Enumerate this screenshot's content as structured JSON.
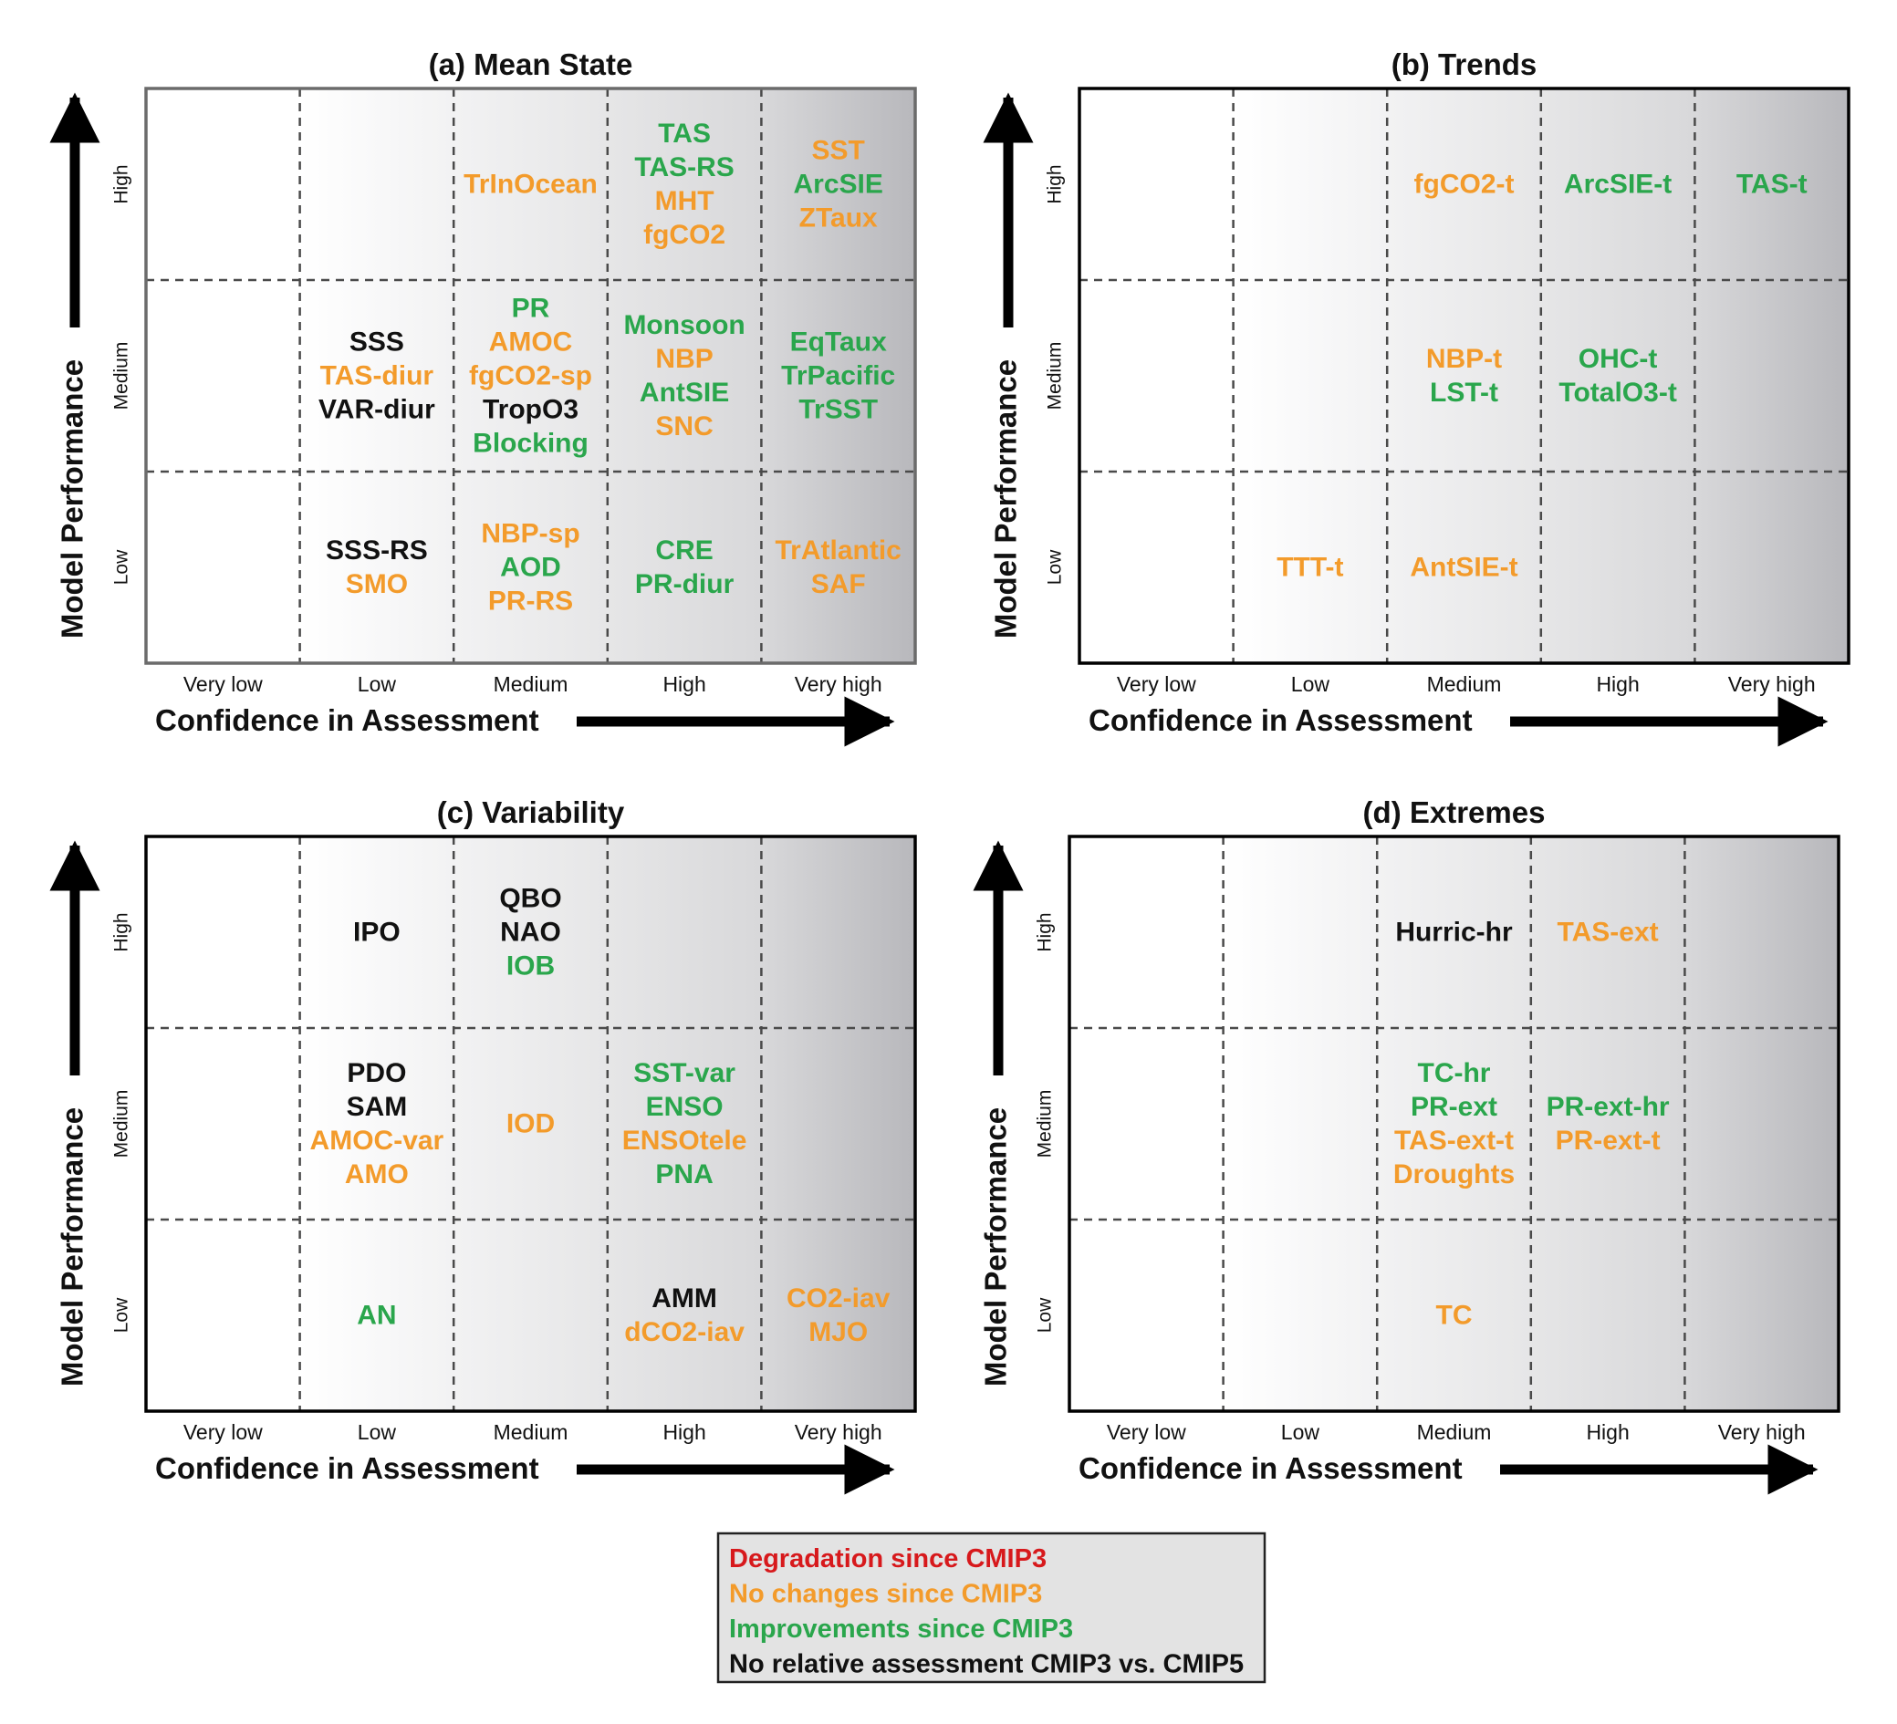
{
  "colors": {
    "degradation": "#d7191c",
    "no_change": "#f39b2b",
    "improvement": "#2aa64c",
    "no_assessment": "#111111"
  },
  "axes": {
    "x_title": "Confidence in Assessment",
    "y_title": "Model Performance",
    "x_ticks": [
      "Very low",
      "Low",
      "Medium",
      "High",
      "Very high"
    ],
    "y_ticks": [
      "Low",
      "Medium",
      "High"
    ]
  },
  "legend": [
    {
      "key": "degradation",
      "label": "Degradation since CMIP3"
    },
    {
      "key": "no_change",
      "label": "No changes since CMIP3"
    },
    {
      "key": "improvement",
      "label": "Improvements since CMIP3"
    },
    {
      "key": "no_assessment",
      "label": "No relative assessment CMIP3 vs. CMIP5"
    }
  ],
  "chart_data": [
    {
      "type": "table",
      "title": "(a) Mean State",
      "cells": [
        {
          "confidence": "Medium",
          "performance": "High",
          "items": [
            {
              "label": "TrInOcean",
              "status": "no_change"
            }
          ]
        },
        {
          "confidence": "High",
          "performance": "High",
          "items": [
            {
              "label": "TAS",
              "status": "improvement"
            },
            {
              "label": "TAS-RS",
              "status": "improvement"
            },
            {
              "label": "MHT",
              "status": "no_change"
            },
            {
              "label": "fgCO2",
              "status": "no_change"
            }
          ]
        },
        {
          "confidence": "Very high",
          "performance": "High",
          "items": [
            {
              "label": "SST",
              "status": "no_change"
            },
            {
              "label": "ArcSIE",
              "status": "improvement"
            },
            {
              "label": "ZTaux",
              "status": "no_change"
            }
          ]
        },
        {
          "confidence": "Low",
          "performance": "Medium",
          "items": [
            {
              "label": "SSS",
              "status": "no_assessment"
            },
            {
              "label": "TAS-diur",
              "status": "no_change"
            },
            {
              "label": "VAR-diur",
              "status": "no_assessment"
            }
          ]
        },
        {
          "confidence": "Medium",
          "performance": "Medium",
          "items": [
            {
              "label": "PR",
              "status": "improvement"
            },
            {
              "label": "AMOC",
              "status": "no_change"
            },
            {
              "label": "fgCO2-sp",
              "status": "no_change"
            },
            {
              "label": "TropO3",
              "status": "no_assessment"
            },
            {
              "label": "Blocking",
              "status": "improvement"
            }
          ]
        },
        {
          "confidence": "High",
          "performance": "Medium",
          "items": [
            {
              "label": "Monsoon",
              "status": "improvement"
            },
            {
              "label": "NBP",
              "status": "no_change"
            },
            {
              "label": "AntSIE",
              "status": "improvement"
            },
            {
              "label": "SNC",
              "status": "no_change"
            }
          ]
        },
        {
          "confidence": "Very high",
          "performance": "Medium",
          "items": [
            {
              "label": "EqTaux",
              "status": "improvement"
            },
            {
              "label": "TrPacific",
              "status": "improvement"
            },
            {
              "label": "TrSST",
              "status": "improvement"
            }
          ]
        },
        {
          "confidence": "Low",
          "performance": "Low",
          "items": [
            {
              "label": "SSS-RS",
              "status": "no_assessment"
            },
            {
              "label": "SMO",
              "status": "no_change"
            }
          ]
        },
        {
          "confidence": "Medium",
          "performance": "Low",
          "items": [
            {
              "label": "NBP-sp",
              "status": "no_change"
            },
            {
              "label": "AOD",
              "status": "improvement"
            },
            {
              "label": "PR-RS",
              "status": "no_change"
            }
          ]
        },
        {
          "confidence": "High",
          "performance": "Low",
          "items": [
            {
              "label": "CRE",
              "status": "improvement"
            },
            {
              "label": "PR-diur",
              "status": "improvement"
            }
          ]
        },
        {
          "confidence": "Very high",
          "performance": "Low",
          "items": [
            {
              "label": "TrAtlantic",
              "status": "no_change"
            },
            {
              "label": "SAF",
              "status": "no_change"
            }
          ]
        }
      ]
    },
    {
      "type": "table",
      "title": "(b) Trends",
      "cells": [
        {
          "confidence": "Medium",
          "performance": "High",
          "items": [
            {
              "label": "fgCO2-t",
              "status": "no_change"
            }
          ]
        },
        {
          "confidence": "High",
          "performance": "High",
          "items": [
            {
              "label": "ArcSIE-t",
              "status": "improvement"
            }
          ]
        },
        {
          "confidence": "Very high",
          "performance": "High",
          "items": [
            {
              "label": "TAS-t",
              "status": "improvement"
            }
          ]
        },
        {
          "confidence": "Medium",
          "performance": "Medium",
          "items": [
            {
              "label": "NBP-t",
              "status": "no_change"
            },
            {
              "label": "LST-t",
              "status": "improvement"
            }
          ]
        },
        {
          "confidence": "High",
          "performance": "Medium",
          "items": [
            {
              "label": "OHC-t",
              "status": "improvement"
            },
            {
              "label": "TotalO3-t",
              "status": "improvement"
            }
          ]
        },
        {
          "confidence": "Low",
          "performance": "Low",
          "items": [
            {
              "label": "TTT-t",
              "status": "no_change"
            }
          ]
        },
        {
          "confidence": "Medium",
          "performance": "Low",
          "items": [
            {
              "label": "AntSIE-t",
              "status": "no_change"
            }
          ]
        }
      ]
    },
    {
      "type": "table",
      "title": "(c) Variability",
      "cells": [
        {
          "confidence": "Low",
          "performance": "High",
          "items": [
            {
              "label": "IPO",
              "status": "no_assessment"
            }
          ]
        },
        {
          "confidence": "Medium",
          "performance": "High",
          "items": [
            {
              "label": "QBO",
              "status": "no_assessment"
            },
            {
              "label": "NAO",
              "status": "no_assessment"
            },
            {
              "label": "IOB",
              "status": "improvement"
            }
          ]
        },
        {
          "confidence": "Low",
          "performance": "Medium",
          "items": [
            {
              "label": "PDO",
              "status": "no_assessment"
            },
            {
              "label": "SAM",
              "status": "no_assessment"
            },
            {
              "label": "AMOC-var",
              "status": "no_change"
            },
            {
              "label": "AMO",
              "status": "no_change"
            }
          ]
        },
        {
          "confidence": "Medium",
          "performance": "Medium",
          "items": [
            {
              "label": "IOD",
              "status": "no_change"
            }
          ]
        },
        {
          "confidence": "High",
          "performance": "Medium",
          "items": [
            {
              "label": "SST-var",
              "status": "improvement"
            },
            {
              "label": "ENSO",
              "status": "improvement"
            },
            {
              "label": "ENSOtele",
              "status": "no_change"
            },
            {
              "label": "PNA",
              "status": "improvement"
            }
          ]
        },
        {
          "confidence": "Low",
          "performance": "Low",
          "items": [
            {
              "label": "AN",
              "status": "improvement"
            }
          ]
        },
        {
          "confidence": "High",
          "performance": "Low",
          "items": [
            {
              "label": "AMM",
              "status": "no_assessment"
            },
            {
              "label": "dCO2-iav",
              "status": "no_change"
            }
          ]
        },
        {
          "confidence": "Very high",
          "performance": "Low",
          "items": [
            {
              "label": "CO2-iav",
              "status": "no_change"
            },
            {
              "label": "MJO",
              "status": "no_change"
            }
          ]
        }
      ]
    },
    {
      "type": "table",
      "title": "(d) Extremes",
      "cells": [
        {
          "confidence": "Medium",
          "performance": "High",
          "items": [
            {
              "label": "Hurric-hr",
              "status": "no_assessment"
            }
          ]
        },
        {
          "confidence": "High",
          "performance": "High",
          "items": [
            {
              "label": "TAS-ext",
              "status": "no_change"
            }
          ]
        },
        {
          "confidence": "Medium",
          "performance": "Medium",
          "items": [
            {
              "label": "TC-hr",
              "status": "improvement"
            },
            {
              "label": "PR-ext",
              "status": "improvement"
            },
            {
              "label": "TAS-ext-t",
              "status": "no_change"
            },
            {
              "label": "Droughts",
              "status": "no_change"
            }
          ]
        },
        {
          "confidence": "High",
          "performance": "Medium",
          "items": [
            {
              "label": "PR-ext-hr",
              "status": "improvement"
            },
            {
              "label": "PR-ext-t",
              "status": "no_change"
            }
          ]
        },
        {
          "confidence": "Medium",
          "performance": "Low",
          "items": [
            {
              "label": "TC",
              "status": "no_change"
            }
          ]
        }
      ]
    }
  ]
}
